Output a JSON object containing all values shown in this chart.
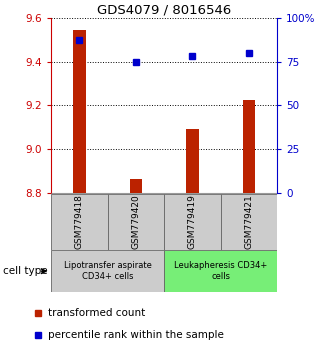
{
  "title": "GDS4079 / 8016546",
  "samples": [
    "GSM779418",
    "GSM779420",
    "GSM779419",
    "GSM779421"
  ],
  "red_values": [
    9.542,
    8.862,
    9.09,
    9.225
  ],
  "blue_values": [
    87,
    75,
    78,
    80
  ],
  "ylim_left": [
    8.8,
    9.6
  ],
  "ylim_right": [
    0,
    100
  ],
  "yticks_left": [
    8.8,
    9.0,
    9.2,
    9.4,
    9.6
  ],
  "yticks_right": [
    0,
    25,
    50,
    75,
    100
  ],
  "ytick_right_labels": [
    "0",
    "25",
    "50",
    "75",
    "100%"
  ],
  "bar_bottom": 8.8,
  "bar_color": "#bb2200",
  "dot_color": "#0000cc",
  "groups": [
    {
      "label": "Lipotransfer aspirate\nCD34+ cells",
      "indices": [
        0,
        1
      ],
      "color": "#cccccc"
    },
    {
      "label": "Leukapheresis CD34+\ncells",
      "indices": [
        2,
        3
      ],
      "color": "#77ee77"
    }
  ],
  "cell_type_label": "cell type",
  "legend_red": "transformed count",
  "legend_blue": "percentile rank within the sample",
  "axis_color_left": "#cc0000",
  "axis_color_right": "#0000cc",
  "background_color": "#ffffff"
}
